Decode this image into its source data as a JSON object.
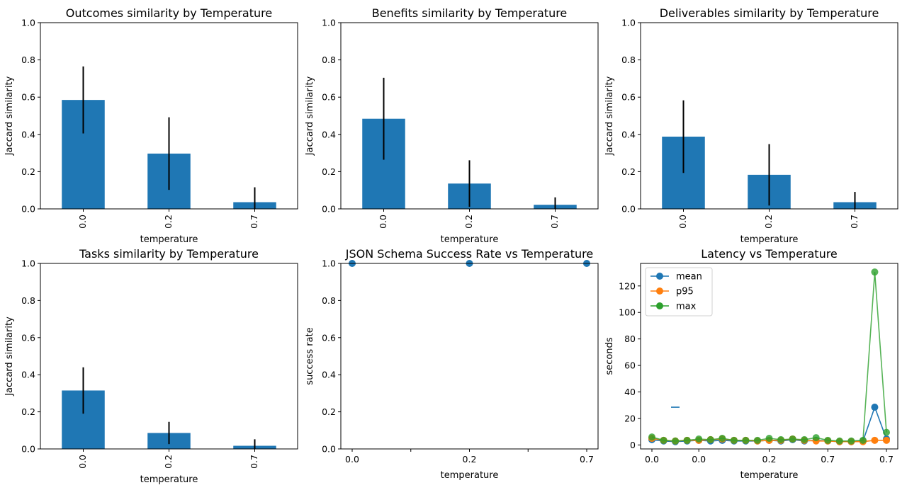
{
  "chart_data": [
    {
      "type": "bar",
      "title": "Outcomes similarity by Temperature",
      "xlabel": "temperature",
      "ylabel": "Jaccard similarity",
      "categories": [
        "0.0",
        "0.2",
        "0.7"
      ],
      "values": [
        0.585,
        0.297,
        0.036
      ],
      "error": [
        0.18,
        0.195,
        0.08
      ],
      "ylim": [
        0,
        1
      ],
      "yticks": [
        "0.0",
        "0.2",
        "0.4",
        "0.6",
        "0.8",
        "1.0"
      ],
      "color": "#1f77b4"
    },
    {
      "type": "bar",
      "title": "Benefits similarity by Temperature",
      "xlabel": "temperature",
      "ylabel": "Jaccard similarity",
      "categories": [
        "0.0",
        "0.2",
        "0.7"
      ],
      "values": [
        0.484,
        0.136,
        0.022
      ],
      "error": [
        0.22,
        0.125,
        0.04
      ],
      "ylim": [
        0,
        1
      ],
      "yticks": [
        "0.0",
        "0.2",
        "0.4",
        "0.6",
        "0.8",
        "1.0"
      ],
      "color": "#1f77b4"
    },
    {
      "type": "bar",
      "title": "Deliverables similarity by Temperature",
      "xlabel": "temperature",
      "ylabel": "Jaccard similarity",
      "categories": [
        "0.0",
        "0.2",
        "0.7"
      ],
      "values": [
        0.388,
        0.183,
        0.036
      ],
      "error": [
        0.195,
        0.165,
        0.055
      ],
      "ylim": [
        0,
        1
      ],
      "yticks": [
        "0.0",
        "0.2",
        "0.4",
        "0.6",
        "0.8",
        "1.0"
      ],
      "color": "#1f77b4"
    },
    {
      "type": "bar",
      "title": "Tasks similarity by Temperature",
      "xlabel": "temperature",
      "ylabel": "Jaccard similarity",
      "categories": [
        "0.0",
        "0.2",
        "0.7"
      ],
      "values": [
        0.315,
        0.086,
        0.017
      ],
      "error": [
        0.125,
        0.06,
        0.035
      ],
      "ylim": [
        0,
        1
      ],
      "yticks": [
        "0.0",
        "0.2",
        "0.4",
        "0.6",
        "0.8",
        "1.0"
      ],
      "color": "#1f77b4"
    },
    {
      "type": "scatter",
      "title": "JSON Schema Success Rate vs Temperature",
      "xlabel": "temperature",
      "ylabel": "success rate",
      "x": [
        0.0,
        0.2,
        0.7
      ],
      "x_tick_labels": [
        "0.0",
        "0.2",
        "0.7"
      ],
      "values": [
        1.0,
        1.0,
        1.0
      ],
      "ylim": [
        0,
        1
      ],
      "yticks": [
        "0.0",
        "0.2",
        "0.4",
        "0.6",
        "0.8",
        "1.0"
      ],
      "color": "#1f77b4"
    },
    {
      "type": "line",
      "title": "Latency vs Temperature",
      "xlabel": "temperature",
      "ylabel": "seconds",
      "x_tick_labels": [
        "0.0",
        "0.0",
        "0.2",
        "0.7",
        "0.7"
      ],
      "yticks": [
        "0",
        "20",
        "40",
        "60",
        "80",
        "100",
        "120"
      ],
      "ylim": [
        -3,
        137
      ],
      "legend_position": "upper-left",
      "stray_marker_value": 28.5,
      "series": [
        {
          "name": "mean",
          "color": "#1f77b4",
          "values": [
            4,
            3,
            2.5,
            3,
            3.5,
            3,
            3.5,
            3,
            3,
            3,
            3.5,
            3,
            4,
            3,
            3.5,
            3,
            2.5,
            2.5,
            3,
            28.5,
            4.5
          ]
        },
        {
          "name": "p95",
          "color": "#ff7f0e",
          "values": [
            5,
            3.5,
            3,
            3.5,
            3.5,
            4,
            4.5,
            3.5,
            3.5,
            3,
            3.5,
            3.5,
            4.5,
            3.5,
            3,
            3,
            2.5,
            2.5,
            2.5,
            3.5,
            3.5
          ]
        },
        {
          "name": "max",
          "color": "#2ca02c",
          "values": [
            6,
            3.5,
            3,
            3.5,
            4.5,
            4,
            5,
            3.5,
            3.5,
            3.5,
            5,
            4,
            4.5,
            4,
            5.5,
            3.5,
            3,
            3,
            3.5,
            130.5,
            9.5
          ]
        }
      ]
    }
  ]
}
